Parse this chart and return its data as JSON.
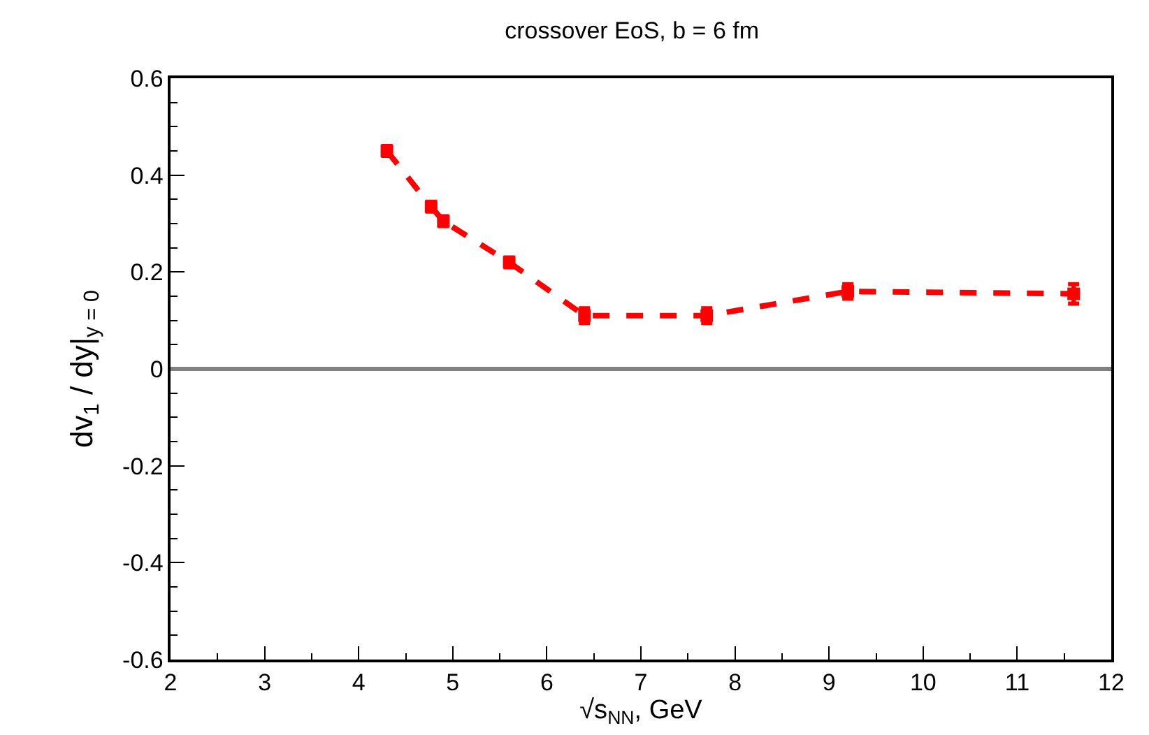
{
  "chart_data": {
    "type": "line",
    "title": "crossover EoS, b = 6 fm",
    "xlabel": "√s$_{NN}$, GeV",
    "ylabel": "dv$_{1}$ / dy|$_{y = 0}$",
    "x": [
      4.3,
      4.77,
      4.9,
      5.6,
      6.4,
      7.7,
      9.2,
      11.6
    ],
    "series": [
      {
        "color": "#ff0000",
        "values": [
          0.45,
          0.335,
          0.305,
          0.22,
          0.11,
          0.11,
          0.16,
          0.155
        ],
        "errors": [
          0.01,
          0.01,
          0.01,
          0.01,
          0.015,
          0.015,
          0.015,
          0.02
        ]
      }
    ],
    "xlim": [
      2,
      12
    ],
    "xticks": [
      2,
      3,
      4,
      5,
      6,
      7,
      8,
      9,
      10,
      11,
      12
    ],
    "ylim": [
      -0.6,
      0.6
    ],
    "yticks": [
      -0.6,
      -0.4,
      -0.2,
      0,
      0.2,
      0.4,
      0.6
    ],
    "ref_lines": [
      {
        "axis": "y",
        "value": 0,
        "color": "#808080",
        "line_style": "solid"
      }
    ],
    "marker": "square",
    "line_style": "dashed"
  }
}
